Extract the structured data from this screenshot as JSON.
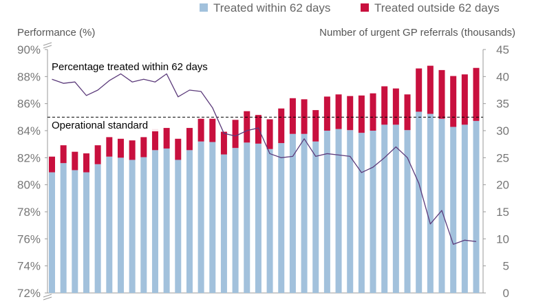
{
  "chart_data": {
    "type": "bar+line",
    "title": "",
    "legend": {
      "placement": "top-right",
      "entries": [
        {
          "key": "within",
          "label": "Treated within 62 days",
          "color": "#a2c1dc"
        },
        {
          "key": "outside",
          "label": "Treated outside 62 days",
          "color": "#c8103e"
        }
      ]
    },
    "left_axis": {
      "title": "Performance (%)",
      "range": [
        72,
        90
      ],
      "ticks": [
        "90%",
        "88%",
        "86%",
        "84%",
        "82%",
        "80%",
        "78%",
        "76%",
        "74%",
        "72%"
      ],
      "tick_values": [
        90,
        88,
        86,
        84,
        82,
        80,
        78,
        76,
        74,
        72
      ]
    },
    "right_axis": {
      "title": "Number of urgent GP referrals (thousands)",
      "range": [
        0,
        45
      ],
      "ticks": [
        "45",
        "40",
        "35",
        "30",
        "25",
        "20",
        "15",
        "10",
        "5",
        "0"
      ],
      "tick_values": [
        45,
        40,
        35,
        30,
        25,
        20,
        15,
        10,
        5,
        0
      ]
    },
    "series": [
      {
        "name": "Treated within 62 days",
        "axis": "right",
        "stack": "referrals",
        "color": "#a2c1dc",
        "values": [
          22.3,
          24.0,
          22.7,
          22.3,
          23.8,
          25.2,
          25.0,
          24.6,
          25.1,
          26.4,
          26.7,
          24.6,
          26.4,
          28.0,
          27.9,
          25.6,
          26.8,
          27.8,
          27.6,
          26.6,
          27.7,
          29.4,
          29.4,
          28.0,
          30.0,
          30.3,
          30.1,
          29.6,
          30.0,
          31.1,
          31.1,
          30.1,
          33.5,
          33.1,
          32.2,
          30.7,
          31.1,
          31.8
        ]
      },
      {
        "name": "Treated outside 62 days",
        "axis": "right",
        "stack": "referrals",
        "color": "#c8103e",
        "values": [
          2.9,
          3.3,
          3.4,
          3.5,
          3.5,
          3.6,
          3.5,
          3.6,
          3.7,
          3.9,
          3.8,
          3.9,
          4.1,
          4.2,
          4.3,
          4.2,
          5.2,
          5.8,
          5.3,
          5.5,
          6.4,
          6.6,
          6.4,
          5.8,
          6.3,
          6.4,
          6.3,
          6.9,
          6.9,
          7.1,
          6.7,
          6.6,
          8.0,
          8.9,
          9.0,
          9.4,
          9.3,
          9.8
        ]
      },
      {
        "name": "Percentage treated within 62 days",
        "axis": "left",
        "type": "line",
        "color": "#5b3a7a",
        "values": [
          87.8,
          87.5,
          87.6,
          86.6,
          87.0,
          87.7,
          88.2,
          87.6,
          87.8,
          87.6,
          88.2,
          86.5,
          87.0,
          86.9,
          85.7,
          83.8,
          83.6,
          84.0,
          84.2,
          82.3,
          82.0,
          82.1,
          83.4,
          82.1,
          82.3,
          82.2,
          82.1,
          80.9,
          81.3,
          82.0,
          82.8,
          82.0,
          80.1,
          77.1,
          78.1,
          75.6,
          75.9,
          75.8
        ]
      }
    ],
    "annotations": {
      "line_label": "Percentage treated within 62 days",
      "standard_label": "Operational standard",
      "standard_value": 85
    }
  }
}
